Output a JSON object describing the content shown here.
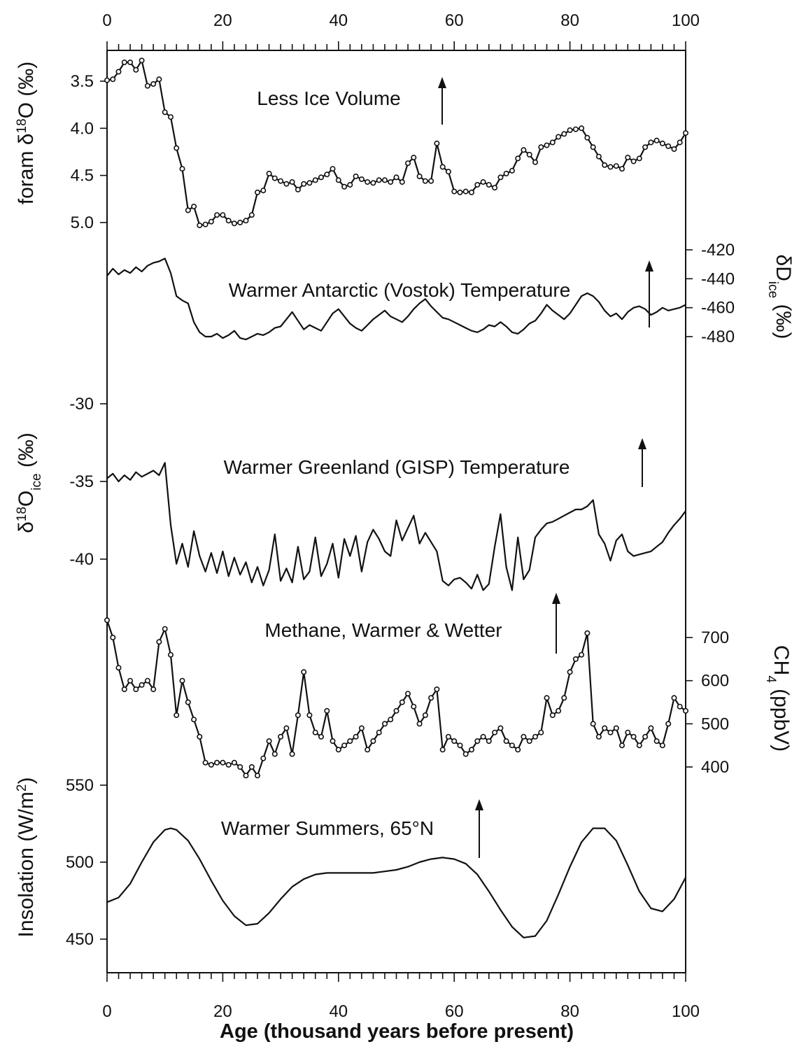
{
  "chart_data": {
    "type": "line",
    "x_axis": {
      "label": "Age (thousand years before present)",
      "range": [
        0,
        100
      ],
      "ticks": [
        "0",
        "20",
        "40",
        "60",
        "80",
        "100"
      ]
    },
    "panels": [
      {
        "id": "foram",
        "ylabel": "foram δ18O (‰)",
        "ylabel_parts": [
          "foram δ",
          "18",
          "O (‰)"
        ],
        "axis_side": "left",
        "inverted": true,
        "ticks": [
          "3.5",
          "4.0",
          "4.5",
          "5.0"
        ],
        "annotation": "Less Ice Volume",
        "markers": true,
        "x": [
          0,
          1,
          2,
          3,
          4,
          5,
          6,
          7,
          8,
          9,
          10,
          11,
          12,
          13,
          14,
          15,
          16,
          17,
          18,
          19,
          20,
          21,
          22,
          23,
          24,
          25,
          26,
          27,
          28,
          29,
          30,
          31,
          32,
          33,
          34,
          35,
          36,
          37,
          38,
          39,
          40,
          41,
          42,
          43,
          44,
          45,
          46,
          47,
          48,
          49,
          50,
          51,
          52,
          53,
          54,
          55,
          56,
          57,
          58,
          59,
          60,
          61,
          62,
          63,
          64,
          65,
          66,
          67,
          68,
          69,
          70,
          71,
          72,
          73,
          74,
          75,
          76,
          77,
          78,
          79,
          80,
          81,
          82,
          83,
          84,
          85,
          86,
          87,
          88,
          89,
          90,
          91,
          92,
          93,
          94,
          95,
          96,
          97,
          98,
          99,
          100
        ],
        "y": [
          3.49,
          3.48,
          3.4,
          3.3,
          3.3,
          3.38,
          3.28,
          3.55,
          3.53,
          3.48,
          3.83,
          3.88,
          4.21,
          4.43,
          4.87,
          4.83,
          5.03,
          5.02,
          4.99,
          4.92,
          4.92,
          4.98,
          5.01,
          5.0,
          4.98,
          4.92,
          4.68,
          4.66,
          4.48,
          4.53,
          4.56,
          4.59,
          4.57,
          4.65,
          4.59,
          4.58,
          4.55,
          4.52,
          4.49,
          4.43,
          4.55,
          4.62,
          4.6,
          4.51,
          4.54,
          4.57,
          4.58,
          4.55,
          4.55,
          4.57,
          4.52,
          4.57,
          4.37,
          4.31,
          4.51,
          4.56,
          4.56,
          4.16,
          4.41,
          4.46,
          4.67,
          4.68,
          4.67,
          4.68,
          4.6,
          4.57,
          4.6,
          4.63,
          4.52,
          4.48,
          4.45,
          4.32,
          4.23,
          4.28,
          4.36,
          4.2,
          4.18,
          4.15,
          4.09,
          4.06,
          4.02,
          4.01,
          4.0,
          4.1,
          4.2,
          4.3,
          4.39,
          4.41,
          4.4,
          4.43,
          4.31,
          4.35,
          4.32,
          4.2,
          4.15,
          4.13,
          4.16,
          4.19,
          4.22,
          4.15,
          4.05
        ]
      },
      {
        "id": "vostok",
        "ylabel": "δDice (‰)",
        "ylabel_parts": [
          "δD",
          "ice",
          " (‰)"
        ],
        "axis_side": "right",
        "inverted": false,
        "ticks": [
          "-420",
          "-440",
          "-460",
          "-480"
        ],
        "annotation": "Warmer Antarctic (Vostok) Temperature",
        "markers": false,
        "x": [
          0,
          1,
          2,
          3,
          4,
          5,
          6,
          7,
          8,
          9,
          10,
          11,
          12,
          13,
          14,
          15,
          16,
          17,
          18,
          19,
          20,
          21,
          22,
          23,
          24,
          25,
          26,
          27,
          28,
          29,
          30,
          31,
          32,
          33,
          34,
          35,
          36,
          37,
          38,
          39,
          40,
          41,
          42,
          43,
          44,
          45,
          46,
          47,
          48,
          49,
          50,
          51,
          52,
          53,
          54,
          55,
          56,
          57,
          58,
          59,
          60,
          61,
          62,
          63,
          64,
          65,
          66,
          67,
          68,
          69,
          70,
          71,
          72,
          73,
          74,
          75,
          76,
          77,
          78,
          79,
          80,
          81,
          82,
          83,
          84,
          85,
          86,
          87,
          88,
          89,
          90,
          91,
          92,
          93,
          94,
          95,
          96,
          97,
          98,
          99,
          100
        ],
        "y": [
          -438,
          -433,
          -437,
          -434,
          -436,
          -432,
          -435,
          -431,
          -429,
          -428,
          -426,
          -436,
          -452,
          -455,
          -457,
          -470,
          -477,
          -480,
          -480,
          -478,
          -481,
          -479,
          -476,
          -481,
          -482,
          -480,
          -478,
          -479,
          -477,
          -474,
          -473,
          -468,
          -463,
          -469,
          -475,
          -472,
          -474,
          -476,
          -470,
          -464,
          -461,
          -466,
          -471,
          -474,
          -476,
          -472,
          -468,
          -465,
          -462,
          -466,
          -468,
          -470,
          -466,
          -461,
          -457,
          -454,
          -459,
          -463,
          -467,
          -468,
          -470,
          -472,
          -474,
          -476,
          -477,
          -475,
          -472,
          -473,
          -470,
          -473,
          -477,
          -478,
          -475,
          -471,
          -469,
          -464,
          -458,
          -462,
          -465,
          -468,
          -464,
          -458,
          -452,
          -450,
          -452,
          -456,
          -462,
          -466,
          -464,
          -468,
          -463,
          -460,
          -459,
          -461,
          -465,
          -463,
          -460,
          -462,
          -461,
          -460,
          -458
        ]
      },
      {
        "id": "gisp",
        "ylabel": "δ18Oice (‰)",
        "ylabel_parts": [
          "δ",
          "18",
          "O",
          "ice",
          " (‰)"
        ],
        "axis_side": "left",
        "inverted": false,
        "ticks": [
          "-30",
          "-35",
          "-40"
        ],
        "annotation": "Warmer Greenland (GISP) Temperature",
        "markers": false,
        "x": [
          0,
          1,
          2,
          3,
          4,
          5,
          6,
          7,
          8,
          9,
          10,
          11,
          12,
          13,
          14,
          15,
          16,
          17,
          18,
          19,
          20,
          21,
          22,
          23,
          24,
          25,
          26,
          27,
          28,
          29,
          30,
          31,
          32,
          33,
          34,
          35,
          36,
          37,
          38,
          39,
          40,
          41,
          42,
          43,
          44,
          45,
          46,
          47,
          48,
          49,
          50,
          51,
          52,
          53,
          54,
          55,
          56,
          57,
          58,
          59,
          60,
          61,
          62,
          63,
          64,
          65,
          66,
          67,
          68,
          69,
          70,
          71,
          72,
          73,
          74,
          75,
          76,
          77,
          78,
          79,
          80,
          81,
          82,
          83,
          84,
          85,
          86,
          87,
          88,
          89,
          90,
          91,
          92,
          93,
          94,
          95,
          96,
          97,
          98,
          99,
          100
        ],
        "y": [
          -34.8,
          -34.5,
          -35.0,
          -34.6,
          -34.9,
          -34.4,
          -34.7,
          -34.5,
          -34.3,
          -34.6,
          -33.8,
          -37.8,
          -40.3,
          -39.0,
          -40.5,
          -38.2,
          -39.8,
          -40.8,
          -39.6,
          -40.9,
          -39.5,
          -41.1,
          -39.9,
          -41.0,
          -40.2,
          -41.5,
          -40.5,
          -41.7,
          -40.7,
          -38.4,
          -41.4,
          -40.6,
          -41.5,
          -39.2,
          -41.3,
          -40.8,
          -38.6,
          -41.1,
          -40.3,
          -39.0,
          -41.2,
          -38.7,
          -39.8,
          -38.5,
          -40.8,
          -38.9,
          -38.1,
          -38.7,
          -39.5,
          -39.8,
          -37.5,
          -38.8,
          -38.0,
          -37.2,
          -39.0,
          -38.3,
          -38.9,
          -39.5,
          -41.4,
          -41.7,
          -41.3,
          -41.2,
          -41.5,
          -41.9,
          -41.0,
          -42.0,
          -41.6,
          -39.2,
          -37.1,
          -40.5,
          -42.0,
          -38.6,
          -41.3,
          -40.7,
          -38.6,
          -38.1,
          -37.7,
          -37.6,
          -37.4,
          -37.2,
          -37.0,
          -36.8,
          -36.8,
          -36.6,
          -36.2,
          -38.4,
          -39.0,
          -40.1,
          -38.8,
          -38.4,
          -39.5,
          -39.8,
          -39.7,
          -39.6,
          -39.5,
          -39.2,
          -38.9,
          -38.3,
          -37.8,
          -37.4,
          -36.9
        ]
      },
      {
        "id": "methane",
        "ylabel": "CH4 (ppbV)",
        "ylabel_parts": [
          "CH",
          "4",
          " (ppbV)"
        ],
        "axis_side": "right",
        "inverted": false,
        "ticks": [
          "400",
          "500",
          "600",
          "700"
        ],
        "annotation": "Methane, Warmer & Wetter",
        "markers": true,
        "x": [
          0,
          1,
          2,
          3,
          4,
          5,
          6,
          7,
          8,
          9,
          10,
          11,
          12,
          13,
          14,
          15,
          16,
          17,
          18,
          19,
          20,
          21,
          22,
          23,
          24,
          25,
          26,
          27,
          28,
          29,
          30,
          31,
          32,
          33,
          34,
          35,
          36,
          37,
          38,
          39,
          40,
          41,
          42,
          43,
          44,
          45,
          46,
          47,
          48,
          49,
          50,
          51,
          52,
          53,
          54,
          55,
          56,
          57,
          58,
          59,
          60,
          61,
          62,
          63,
          64,
          65,
          66,
          67,
          68,
          69,
          70,
          71,
          72,
          73,
          74,
          75,
          76,
          77,
          78,
          79,
          80,
          81,
          82,
          83,
          84,
          85,
          86,
          87,
          88,
          89,
          90,
          91,
          92,
          93,
          94,
          95,
          96,
          97,
          98,
          99,
          100
        ],
        "y": [
          740,
          700,
          630,
          580,
          600,
          580,
          590,
          600,
          580,
          690,
          720,
          660,
          520,
          600,
          550,
          510,
          470,
          410,
          405,
          410,
          410,
          405,
          410,
          400,
          380,
          400,
          380,
          420,
          460,
          430,
          470,
          490,
          430,
          520,
          620,
          520,
          480,
          470,
          530,
          460,
          440,
          450,
          460,
          470,
          490,
          440,
          460,
          480,
          500,
          510,
          530,
          550,
          570,
          540,
          500,
          520,
          560,
          580,
          440,
          470,
          460,
          450,
          430,
          440,
          460,
          470,
          460,
          480,
          490,
          460,
          450,
          440,
          470,
          460,
          470,
          480,
          560,
          520,
          530,
          560,
          620,
          650,
          660,
          710,
          500,
          470,
          490,
          480,
          490,
          450,
          480,
          470,
          450,
          470,
          490,
          460,
          450,
          500,
          560,
          540,
          530
        ]
      },
      {
        "id": "insolation",
        "ylabel": "Insolation (W/m2)",
        "ylabel_parts": [
          "Insolation (W/m",
          "2",
          ")"
        ],
        "axis_side": "left",
        "inverted": false,
        "ticks": [
          "550",
          "500",
          "450"
        ],
        "annotation": "Warmer Summers, 65°N",
        "markers": false,
        "x": [
          0,
          2,
          4,
          6,
          8,
          10,
          11,
          12,
          14,
          16,
          18,
          20,
          22,
          24,
          26,
          28,
          30,
          32,
          34,
          36,
          38,
          40,
          42,
          44,
          46,
          48,
          50,
          52,
          54,
          56,
          58,
          60,
          62,
          64,
          66,
          68,
          70,
          72,
          74,
          76,
          78,
          80,
          82,
          84,
          86,
          88,
          90,
          92,
          94,
          96,
          98,
          100
        ],
        "y": [
          474,
          477,
          486,
          500,
          513,
          521,
          522,
          521,
          514,
          502,
          488,
          475,
          465,
          459,
          460,
          467,
          476,
          484,
          489,
          492,
          493,
          493,
          493,
          493,
          493,
          494,
          495,
          497,
          500,
          502,
          503,
          502,
          499,
          492,
          481,
          469,
          458,
          451,
          452,
          462,
          479,
          497,
          513,
          522,
          522,
          514,
          498,
          481,
          470,
          468,
          476,
          490
        ]
      }
    ]
  }
}
